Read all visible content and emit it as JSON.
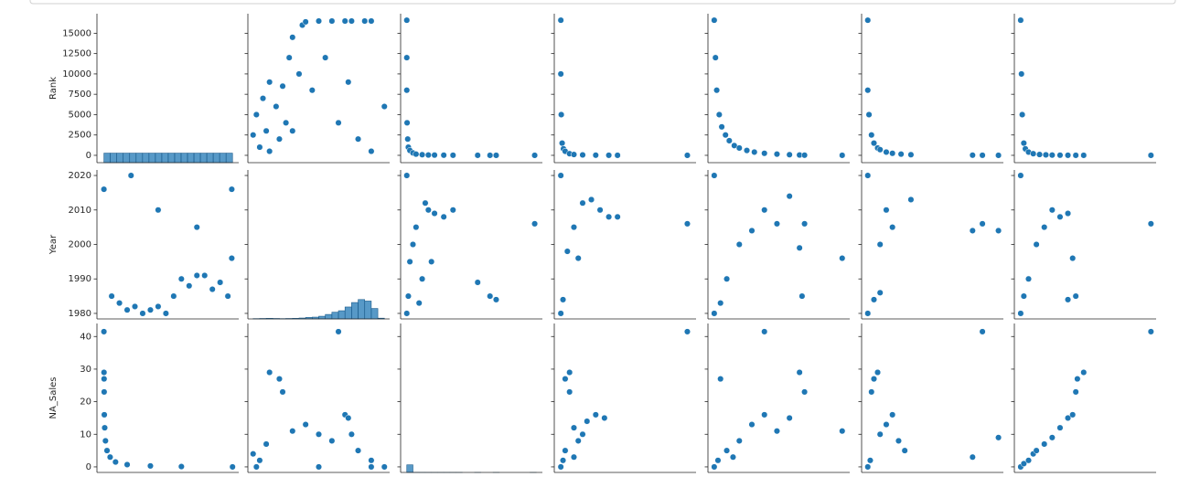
{
  "chart_data": {
    "type": "pairplot",
    "color": "#1f77b4",
    "columns": [
      {
        "xlim": [
          -900,
          17400
        ]
      },
      {
        "xlim": [
          1978.4,
          2021.6
        ]
      },
      {
        "xlim": [
          -2,
          44
        ]
      },
      {
        "xlim": [
          -1.5,
          31
        ]
      },
      {
        "xlim": [
          -0.5,
          10.8
        ]
      },
      {
        "xlim": [
          -0.5,
          11
        ]
      },
      {
        "xlim": [
          -4,
          86
        ]
      }
    ],
    "rows": [
      {
        "label": "Rank",
        "ylim": [
          -900,
          17400
        ],
        "yticks": [
          0,
          2500,
          5000,
          7500,
          10000,
          12500,
          15000
        ]
      },
      {
        "label": "Year",
        "ylim": [
          1978.4,
          2021.6
        ],
        "yticks": [
          1980,
          1990,
          2000,
          2010,
          2020
        ]
      },
      {
        "label": "NA_Sales",
        "ylim": [
          -1.7,
          44
        ],
        "yticks": [
          0,
          10,
          20,
          30,
          40
        ]
      }
    ],
    "panels": [
      [
        {
          "type": "hist",
          "bins": [
            0,
            830,
            1660,
            2490,
            3320,
            4150,
            4980,
            5810,
            6640,
            7470,
            8300,
            9130,
            9960,
            10790,
            11620,
            12450,
            13280,
            14110,
            14940,
            15770,
            16600
          ],
          "counts": [
            830,
            830,
            830,
            830,
            830,
            830,
            830,
            830,
            830,
            830,
            830,
            830,
            830,
            830,
            830,
            830,
            830,
            830,
            830,
            830
          ],
          "countlim": [
            0,
            13000
          ]
        },
        {
          "type": "scatter",
          "x": [
            1980,
            1981,
            1982,
            1983,
            1984,
            1985,
            1985,
            1987,
            1988,
            1989,
            1990,
            1991,
            1992,
            1992,
            1994,
            1995,
            1996,
            1998,
            2000,
            2002,
            2004,
            2006,
            2008,
            2009,
            2010,
            2012,
            2014,
            2016,
            2016,
            2020
          ],
          "y": [
            2500,
            5000,
            1000,
            7000,
            3000,
            9000,
            500,
            6000,
            2000,
            8500,
            4000,
            12000,
            14500,
            3000,
            10000,
            16000,
            16400,
            8000,
            16500,
            12000,
            16500,
            4000,
            16500,
            9000,
            16500,
            2000,
            16500,
            16500,
            500,
            6000
          ]
        },
        {
          "type": "scatter",
          "x": [
            0,
            0,
            0,
            0.1,
            0.3,
            0.5,
            1,
            2,
            3,
            5,
            7,
            9,
            12,
            15,
            23,
            27,
            29,
            41.5
          ],
          "y": [
            16600,
            12000,
            8000,
            4000,
            2000,
            1000,
            600,
            300,
            150,
            80,
            40,
            30,
            20,
            12,
            5,
            3,
            2,
            1
          ]
        },
        {
          "type": "scatter",
          "x": [
            0,
            0,
            0.1,
            0.3,
            0.6,
            1,
            2,
            3,
            5,
            8,
            11,
            13,
            29
          ],
          "y": [
            16600,
            10000,
            5000,
            1500,
            800,
            500,
            200,
            100,
            50,
            20,
            10,
            5,
            1
          ]
        },
        {
          "type": "scatter",
          "x": [
            0,
            0.1,
            0.2,
            0.4,
            0.6,
            0.9,
            1.2,
            1.6,
            2,
            2.6,
            3.2,
            4,
            5,
            6,
            6.8,
            7.2,
            10.2
          ],
          "y": [
            16600,
            12000,
            8000,
            5000,
            3500,
            2500,
            1800,
            1200,
            900,
            600,
            400,
            250,
            150,
            80,
            40,
            20,
            5
          ]
        },
        {
          "type": "scatter",
          "x": [
            0,
            0,
            0.1,
            0.3,
            0.5,
            0.8,
            1,
            1.5,
            2,
            2.7,
            3.5,
            8.5,
            9.3,
            10.6
          ],
          "y": [
            16600,
            8000,
            5000,
            2500,
            1500,
            900,
            700,
            400,
            250,
            150,
            80,
            20,
            10,
            2
          ]
        },
        {
          "type": "scatter",
          "x": [
            0,
            0.5,
            1,
            2,
            3,
            5,
            8,
            12,
            16,
            20,
            25,
            30,
            35,
            40,
            82.7
          ],
          "y": [
            16600,
            10000,
            5000,
            1500,
            800,
            400,
            200,
            100,
            60,
            30,
            20,
            10,
            5,
            3,
            1
          ]
        }
      ],
      [
        {
          "type": "scatter",
          "x": [
            0,
            1000,
            2000,
            3000,
            4000,
            5000,
            6000,
            7000,
            8000,
            9000,
            10000,
            11000,
            12000,
            13000,
            14000,
            15000,
            16000,
            16500,
            3500,
            7000,
            12000,
            16500
          ],
          "y": [
            2016,
            1985,
            1983,
            1981,
            1982,
            1980,
            1981,
            1982,
            1980,
            1985,
            1990,
            1988,
            1991,
            1991,
            1987,
            1989,
            1985,
            1996,
            2020,
            2010,
            2005,
            2016
          ]
        },
        {
          "type": "hist",
          "bins": [
            1980,
            1982,
            1984,
            1986,
            1988,
            1990,
            1992,
            1994,
            1996,
            1998,
            2000,
            2002,
            2004,
            2006,
            2008,
            2010,
            2012,
            2014,
            2016,
            2018,
            2020
          ],
          "counts": [
            20,
            30,
            40,
            30,
            20,
            30,
            40,
            60,
            100,
            120,
            180,
            300,
            450,
            550,
            800,
            1100,
            1300,
            1200,
            700,
            50
          ],
          "countlim": [
            0,
            10000
          ]
        },
        {
          "type": "scatter",
          "x": [
            0,
            0,
            0.5,
            1,
            2,
            3,
            4,
            5,
            6,
            7,
            8,
            9,
            12,
            15,
            23,
            27,
            29,
            41.5
          ],
          "y": [
            1980,
            2020,
            1985,
            1995,
            2000,
            2005,
            1983,
            1990,
            2012,
            2010,
            1995,
            2009,
            2008,
            2010,
            1989,
            1985,
            1984,
            2006
          ]
        },
        {
          "type": "scatter",
          "x": [
            0,
            0,
            0.5,
            1.5,
            3,
            4,
            5,
            7,
            9,
            11,
            13,
            29
          ],
          "y": [
            1980,
            2020,
            1984,
            1998,
            2005,
            1996,
            2012,
            2013,
            2010,
            2008,
            2008,
            2006
          ]
        },
        {
          "type": "scatter",
          "x": [
            0,
            0,
            0.5,
            1,
            2,
            3,
            4,
            5,
            6,
            7.2,
            6.8,
            10.2,
            7
          ],
          "y": [
            1980,
            2020,
            1983,
            1990,
            2000,
            2004,
            2010,
            2006,
            2014,
            2006,
            1999,
            1996,
            1985
          ]
        },
        {
          "type": "scatter",
          "x": [
            0,
            0,
            0.5,
            1,
            1.5,
            2,
            3.5,
            8.5,
            9.3,
            10.6,
            1
          ],
          "y": [
            1980,
            2020,
            1984,
            2000,
            2010,
            2005,
            2013,
            2004,
            2006,
            2004,
            1986
          ]
        },
        {
          "type": "scatter",
          "x": [
            0,
            0,
            2,
            5,
            10,
            15,
            20,
            25,
            30,
            33,
            35,
            30,
            82.7
          ],
          "y": [
            1980,
            2020,
            1985,
            1990,
            2000,
            2005,
            2010,
            2008,
            2009,
            1996,
            1985,
            1984,
            2006
          ]
        }
      ],
      [
        {
          "type": "scatter",
          "x": [
            0,
            10,
            20,
            30,
            50,
            100,
            200,
            400,
            800,
            1500,
            3000,
            6000,
            10000,
            16600
          ],
          "y": [
            41.5,
            29,
            27,
            23,
            16,
            12,
            8,
            5,
            3,
            1.5,
            0.7,
            0.3,
            0.1,
            0
          ]
        },
        {
          "type": "scatter",
          "x": [
            1980,
            1982,
            1984,
            1985,
            1988,
            1989,
            1992,
            1996,
            2000,
            2004,
            2006,
            2008,
            2009,
            2010,
            2012,
            2016,
            2020,
            1981,
            2000,
            2016
          ],
          "y": [
            4,
            2,
            7,
            29,
            27,
            23,
            11,
            13,
            10,
            8,
            41.5,
            16,
            15,
            10,
            5,
            2,
            0,
            0,
            0,
            0
          ]
        },
        {
          "type": "hist",
          "bins": [
            0,
            2,
            4,
            6,
            8,
            10,
            12,
            14,
            16,
            18,
            20,
            22,
            24,
            26,
            28,
            30,
            32,
            34,
            36,
            38,
            40,
            42
          ],
          "counts": [
            16300,
            200,
            50,
            20,
            8,
            4,
            3,
            2,
            1,
            0,
            0,
            1,
            0,
            0,
            1,
            0,
            0,
            0,
            0,
            0,
            1
          ],
          "countlim": [
            0,
            320000
          ]
        },
        {
          "type": "scatter",
          "x": [
            0,
            0.5,
            1,
            2,
            2,
            3,
            4,
            5,
            6,
            8,
            10,
            29,
            1,
            3
          ],
          "y": [
            0,
            2,
            27,
            29,
            23,
            12,
            8,
            10,
            14,
            16,
            15,
            41.5,
            5,
            3
          ]
        },
        {
          "type": "scatter",
          "x": [
            0,
            0.5,
            1,
            2,
            3,
            4,
            5,
            6,
            6.8,
            7.2,
            10.2,
            4,
            0.3,
            1.5
          ],
          "y": [
            0,
            27,
            5,
            8,
            13,
            16,
            11,
            15,
            29,
            23,
            11,
            41.5,
            2,
            3
          ]
        },
        {
          "type": "scatter",
          "x": [
            0,
            0.3,
            0.5,
            0.8,
            1,
            1.5,
            2,
            2.5,
            3,
            8.5,
            9.3,
            10.6,
            0.2
          ],
          "y": [
            0,
            23,
            27,
            29,
            10,
            13,
            16,
            8,
            5,
            3,
            41.5,
            9,
            2
          ]
        },
        {
          "type": "scatter",
          "x": [
            0,
            2,
            5,
            8,
            10,
            15,
            20,
            25,
            30,
            33,
            35,
            36,
            40,
            82.7
          ],
          "y": [
            0,
            1,
            2,
            4,
            5,
            7,
            9,
            12,
            15,
            16,
            23,
            27,
            29,
            41.5
          ]
        }
      ]
    ]
  }
}
